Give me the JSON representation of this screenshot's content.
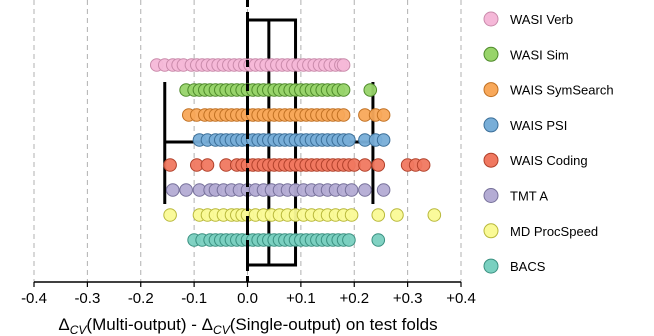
{
  "chart_data": {
    "type": "scatter",
    "subtype": "strip-plot-with-boxplot",
    "title": "",
    "xlabel": {
      "delta": "Δ",
      "sub": "CV",
      "part1": "(Multi-output) - ",
      "part2": "(Single-output) on test folds"
    },
    "xlim": [
      -0.4,
      0.4
    ],
    "xticks": [
      -0.4,
      -0.3,
      -0.2,
      -0.1,
      0.0,
      0.1,
      0.2,
      0.3,
      0.4
    ],
    "xtick_labels": [
      "-0.4",
      "-0.3",
      "-0.2",
      "-0.1",
      "0.0",
      "+0.1",
      "+0.2",
      "+0.3",
      "+0.4"
    ],
    "grid": "vertical dashed",
    "reference_line_x": 0.0,
    "legend_position": "right",
    "box": {
      "q1": 0.04,
      "q3": 0.09,
      "median_low": 0.0,
      "whisker_low": -0.155,
      "whisker_high": 0.235
    },
    "series": [
      {
        "name": "WASI Verb",
        "color": "#f5b8d8",
        "edge": "#c98aaa",
        "values": [
          -0.17,
          -0.155,
          -0.14,
          -0.13,
          -0.12,
          -0.105,
          -0.095,
          -0.085,
          -0.075,
          -0.065,
          -0.055,
          -0.045,
          -0.035,
          -0.025,
          -0.015,
          -0.005,
          0.005,
          0.015,
          0.025,
          0.035,
          0.045,
          0.055,
          0.065,
          0.075,
          0.085,
          0.095,
          0.105,
          0.115,
          0.125,
          0.135,
          0.145,
          0.155,
          0.165,
          0.175,
          0.18
        ]
      },
      {
        "name": "WASI Sim",
        "color": "#98d46a",
        "edge": "#4e8a2a",
        "values": [
          -0.115,
          -0.1,
          -0.09,
          -0.08,
          -0.07,
          -0.06,
          -0.05,
          -0.04,
          -0.03,
          -0.02,
          -0.01,
          0.0,
          0.01,
          0.02,
          0.03,
          0.04,
          0.05,
          0.06,
          0.07,
          0.08,
          0.09,
          0.1,
          0.11,
          0.12,
          0.13,
          0.14,
          0.15,
          0.16,
          0.17,
          0.18,
          0.23
        ]
      },
      {
        "name": "WAIS SymSearch",
        "color": "#f8a85a",
        "edge": "#c07022",
        "values": [
          -0.11,
          -0.095,
          -0.08,
          -0.07,
          -0.06,
          -0.05,
          -0.04,
          -0.03,
          -0.02,
          -0.01,
          0.0,
          0.01,
          0.02,
          0.03,
          0.04,
          0.05,
          0.06,
          0.07,
          0.08,
          0.09,
          0.1,
          0.11,
          0.12,
          0.13,
          0.14,
          0.15,
          0.16,
          0.17,
          0.18,
          0.22,
          0.24,
          0.255
        ]
      },
      {
        "name": "WAIS PSI",
        "color": "#78aed8",
        "edge": "#3a6e98",
        "values": [
          -0.09,
          -0.075,
          -0.06,
          -0.05,
          -0.04,
          -0.03,
          -0.02,
          -0.01,
          0.0,
          0.01,
          0.02,
          0.03,
          0.04,
          0.05,
          0.06,
          0.07,
          0.08,
          0.09,
          0.1,
          0.11,
          0.12,
          0.13,
          0.14,
          0.15,
          0.16,
          0.17,
          0.18,
          0.19,
          0.22,
          0.24,
          0.255
        ]
      },
      {
        "name": "WAIS Coding",
        "color": "#f07860",
        "edge": "#b0402a",
        "values": [
          -0.145,
          -0.095,
          -0.075,
          -0.04,
          -0.02,
          -0.01,
          0.0,
          0.01,
          0.02,
          0.03,
          0.04,
          0.05,
          0.06,
          0.07,
          0.08,
          0.09,
          0.1,
          0.11,
          0.12,
          0.13,
          0.14,
          0.15,
          0.16,
          0.17,
          0.18,
          0.19,
          0.2,
          0.22,
          0.245,
          0.3,
          0.315,
          0.33
        ]
      },
      {
        "name": "TMT A",
        "color": "#b4acd4",
        "edge": "#76709a",
        "values": [
          -0.14,
          -0.115,
          -0.09,
          -0.07,
          -0.06,
          -0.045,
          -0.03,
          -0.015,
          0.0,
          0.015,
          0.03,
          0.045,
          0.06,
          0.075,
          0.09,
          0.105,
          0.12,
          0.135,
          0.15,
          0.165,
          0.18,
          0.195,
          0.22,
          0.255
        ]
      },
      {
        "name": "MD ProcSpeed",
        "color": "#fafa96",
        "edge": "#b8b83a",
        "values": [
          -0.145,
          -0.09,
          -0.075,
          -0.06,
          -0.045,
          -0.03,
          -0.02,
          -0.01,
          0.0,
          0.015,
          0.03,
          0.045,
          0.06,
          0.075,
          0.09,
          0.105,
          0.12,
          0.135,
          0.15,
          0.165,
          0.18,
          0.195,
          0.245,
          0.28,
          0.35
        ]
      },
      {
        "name": "BACS",
        "color": "#7ad0c0",
        "edge": "#3a9080",
        "values": [
          -0.1,
          -0.085,
          -0.07,
          -0.06,
          -0.05,
          -0.04,
          -0.03,
          -0.02,
          -0.01,
          0.0,
          0.01,
          0.02,
          0.03,
          0.04,
          0.05,
          0.06,
          0.07,
          0.08,
          0.09,
          0.1,
          0.11,
          0.12,
          0.13,
          0.14,
          0.15,
          0.16,
          0.17,
          0.18,
          0.19,
          0.245
        ]
      }
    ]
  }
}
